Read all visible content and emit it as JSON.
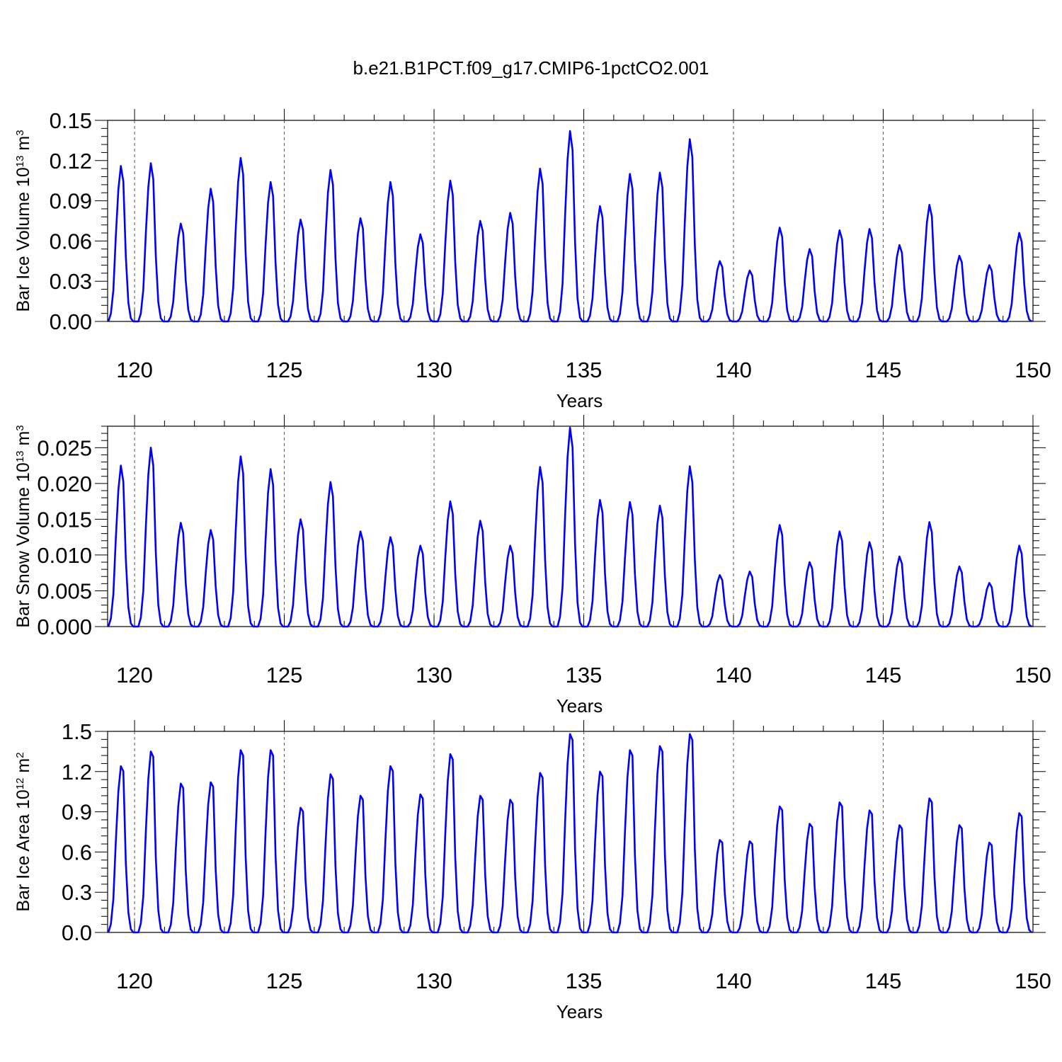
{
  "figure": {
    "title": "b.e21.B1PCT.f09_g17.CMIP6-1pctCO2.001"
  },
  "chart_data": [
    {
      "type": "line",
      "ylabel": "Bar Ice Volume 10",
      "ylabel_exp": "13",
      "ylabel_unit": " m",
      "ylabel_unit_exp": "3",
      "xlabel": "Years",
      "xlim": [
        119.1,
        150
      ],
      "ylim": [
        0,
        0.15
      ],
      "xticks": [
        120,
        125,
        130,
        135,
        140,
        145,
        150
      ],
      "xtick_labels": [
        "120",
        "125",
        "130",
        "135",
        "140",
        "145",
        "150"
      ],
      "yticks": [
        0,
        0.03,
        0.06,
        0.09,
        0.12,
        0.15
      ],
      "ytick_labels": [
        "0.00",
        "0.03",
        "0.06",
        "0.09",
        "0.12",
        "0.15"
      ],
      "grid": "dashed vertical lines at major x ticks",
      "line_color": "#0000ff",
      "annual_peaks": [
        0.116,
        0.118,
        0.073,
        0.099,
        0.122,
        0.104,
        0.076,
        0.113,
        0.077,
        0.104,
        0.065,
        0.105,
        0.075,
        0.081,
        0.114,
        0.142,
        0.086,
        0.11,
        0.111,
        0.136,
        0.045,
        0.038,
        0.07,
        0.054,
        0.068,
        0.069,
        0.057,
        0.087,
        0.049,
        0.042,
        0.066
      ]
    },
    {
      "type": "line",
      "ylabel": "Bar Snow Volume 10",
      "ylabel_exp": "13",
      "ylabel_unit": " m",
      "ylabel_unit_exp": "3",
      "xlabel": "Years",
      "xlim": [
        119.1,
        150
      ],
      "ylim": [
        0,
        0.028
      ],
      "xticks": [
        120,
        125,
        130,
        135,
        140,
        145,
        150
      ],
      "xtick_labels": [
        "120",
        "125",
        "130",
        "135",
        "140",
        "145",
        "150"
      ],
      "yticks": [
        0,
        0.005,
        0.01,
        0.015,
        0.02,
        0.025
      ],
      "ytick_labels": [
        "0.000",
        "0.005",
        "0.010",
        "0.015",
        "0.020",
        "0.025"
      ],
      "grid": "dashed vertical lines at major x ticks",
      "line_color": "#0000ff",
      "annual_peaks": [
        0.0225,
        0.025,
        0.0145,
        0.0135,
        0.0238,
        0.022,
        0.015,
        0.0202,
        0.0133,
        0.0125,
        0.0113,
        0.0175,
        0.0148,
        0.0113,
        0.0223,
        0.0278,
        0.0177,
        0.0174,
        0.0169,
        0.0224,
        0.0072,
        0.0077,
        0.0142,
        0.009,
        0.0133,
        0.0118,
        0.0098,
        0.0146,
        0.0084,
        0.0061,
        0.0113
      ]
    },
    {
      "type": "line",
      "ylabel": "Bar Ice Area 10",
      "ylabel_exp": "12",
      "ylabel_unit": " m",
      "ylabel_unit_exp": "2",
      "xlabel": "Years",
      "xlim": [
        119.1,
        150
      ],
      "ylim": [
        0,
        1.5
      ],
      "xticks": [
        120,
        125,
        130,
        135,
        140,
        145,
        150
      ],
      "xtick_labels": [
        "120",
        "125",
        "130",
        "135",
        "140",
        "145",
        "150"
      ],
      "yticks": [
        0,
        0.3,
        0.6,
        0.9,
        1.2,
        1.5
      ],
      "ytick_labels": [
        "0.0",
        "0.3",
        "0.6",
        "0.9",
        "1.2",
        "1.5"
      ],
      "grid": "dashed vertical lines at major x ticks",
      "line_color": "#0000ff",
      "annual_peaks": [
        1.24,
        1.35,
        1.11,
        1.12,
        1.36,
        1.36,
        0.93,
        1.18,
        1.02,
        1.24,
        1.03,
        1.33,
        1.02,
        0.99,
        1.19,
        1.48,
        1.2,
        1.36,
        1.39,
        1.48,
        0.69,
        0.68,
        0.94,
        0.81,
        0.97,
        0.91,
        0.8,
        1.0,
        0.8,
        0.67,
        0.89
      ]
    }
  ]
}
